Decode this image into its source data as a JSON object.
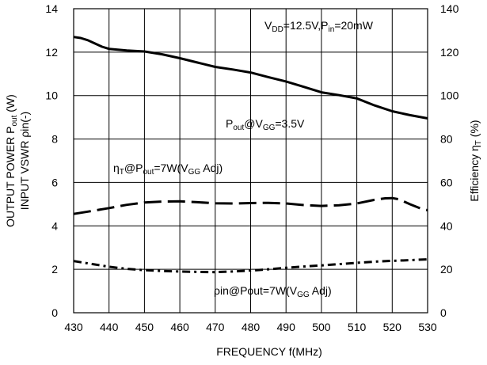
{
  "chart_data": {
    "type": "line",
    "x_axis": {
      "label_main": "FREQUENCY f(MHz)",
      "range": [
        430,
        530
      ],
      "ticks": [
        "430",
        "440",
        "450",
        "460",
        "470",
        "480",
        "490",
        "500",
        "510",
        "520",
        "530"
      ]
    },
    "y_left": {
      "label_line1_prefix": "OUTPUT POWER P",
      "label_line1_sub": "out",
      "label_line1_suffix": " (W)",
      "label_line2": "INPUT VSWR  ρin(-)",
      "range": [
        0,
        14
      ],
      "ticks": [
        "0",
        "2",
        "4",
        "6",
        "8",
        "10",
        "12",
        "14"
      ]
    },
    "y_right": {
      "label_prefix": "Efficiency η",
      "label_sub": "T",
      "label_suffix": " (%)",
      "range": [
        0,
        140
      ],
      "ticks": [
        "0",
        "20",
        "40",
        "60",
        "80",
        "100",
        "120",
        "140"
      ]
    },
    "grid": "vertical and horizontal at major ticks",
    "series": [
      {
        "key": "pout",
        "style": "solid",
        "axis": "left",
        "x": [
          430,
          432,
          434,
          436,
          438,
          440,
          445,
          450,
          455,
          460,
          465,
          470,
          475,
          480,
          485,
          490,
          495,
          500,
          505,
          510,
          515,
          520,
          525,
          530
        ],
        "y": [
          12.7,
          12.65,
          12.55,
          12.4,
          12.25,
          12.15,
          12.08,
          12.03,
          11.9,
          11.72,
          11.52,
          11.32,
          11.2,
          11.06,
          10.85,
          10.65,
          10.4,
          10.15,
          10.02,
          9.87,
          9.55,
          9.28,
          9.1,
          8.95
        ]
      },
      {
        "key": "efficiency",
        "style": "dashed",
        "axis": "left",
        "x": [
          430,
          435,
          440,
          445,
          450,
          455,
          460,
          465,
          470,
          475,
          480,
          485,
          490,
          495,
          500,
          505,
          510,
          515,
          518,
          520,
          522,
          525,
          528,
          530
        ],
        "y": [
          4.55,
          4.68,
          4.82,
          4.97,
          5.08,
          5.12,
          5.13,
          5.09,
          5.04,
          5.03,
          5.05,
          5.06,
          5.03,
          4.96,
          4.92,
          4.95,
          5.03,
          5.2,
          5.27,
          5.28,
          5.22,
          5.0,
          4.8,
          4.72
        ]
      },
      {
        "key": "vswr",
        "style": "dash-dot",
        "axis": "left",
        "x": [
          430,
          435,
          440,
          445,
          450,
          455,
          460,
          465,
          470,
          475,
          480,
          485,
          490,
          495,
          500,
          505,
          510,
          515,
          520,
          525,
          530
        ],
        "y": [
          2.38,
          2.25,
          2.12,
          2.02,
          1.96,
          1.92,
          1.9,
          1.88,
          1.87,
          1.9,
          1.94,
          2.0,
          2.07,
          2.13,
          2.18,
          2.24,
          2.3,
          2.35,
          2.39,
          2.42,
          2.46
        ]
      }
    ],
    "annotations": {
      "conditions": {
        "a": "V",
        "a_sub": "DD",
        "b": "=12.5V,P",
        "b_sub": "in",
        "c": "=20mW"
      },
      "pout": {
        "a": "P",
        "a_sub": "out",
        "b": "@V",
        "b_sub": "GG",
        "c": "=3.5V"
      },
      "eff": {
        "a": "η",
        "a_sub": "T",
        "b": "@P",
        "b_sub": "out",
        "c": "=7W(V",
        "c_sub": "GG",
        "d": " Adj)"
      },
      "vswr": {
        "a": "ρin@Pout=7W(V",
        "a_sub": "GG",
        "b": " Adj)"
      }
    }
  }
}
